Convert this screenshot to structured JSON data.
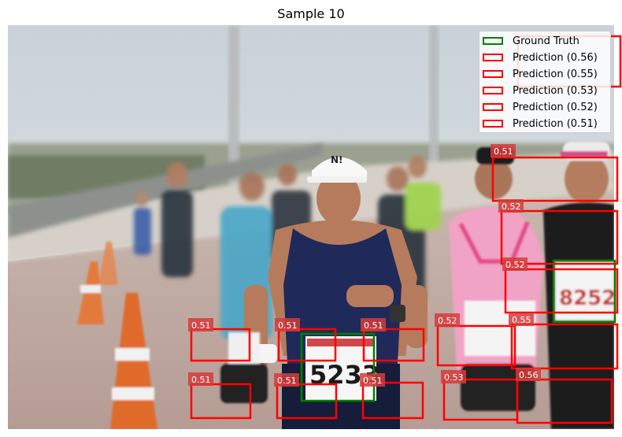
{
  "figure": {
    "title": "Sample 10"
  },
  "photo": {
    "subject": "marathon runners on a bridge",
    "bib_numbers_visible": [
      "5233",
      "8252"
    ]
  },
  "legend": {
    "items": [
      {
        "label": "Ground Truth",
        "color": "#008000"
      },
      {
        "label": "Prediction (0.56)",
        "color": "#ff0000"
      },
      {
        "label": "Prediction (0.55)",
        "color": "#ff0000"
      },
      {
        "label": "Prediction (0.53)",
        "color": "#ff0000"
      },
      {
        "label": "Prediction (0.52)",
        "color": "#ff0000"
      },
      {
        "label": "Prediction (0.51)",
        "color": "#ff0000"
      }
    ]
  },
  "colors": {
    "ground_truth": "#008000",
    "prediction": "#ff0000",
    "score_tag_bg": "#d43c3c"
  },
  "predictions": [
    {
      "score": "0.51"
    },
    {
      "score": "0.52"
    },
    {
      "score": "0.52"
    },
    {
      "score": "0.51"
    },
    {
      "score": "0.51"
    },
    {
      "score": "0.51"
    },
    {
      "score": "0.52"
    },
    {
      "score": "0.55"
    },
    {
      "score": "0.51"
    },
    {
      "score": "0.51"
    },
    {
      "score": "0.51"
    },
    {
      "score": "0.53"
    },
    {
      "score": "0.56"
    }
  ],
  "ground_truths": [
    {
      "label": "5233 bib"
    },
    {
      "label": "8252 bib"
    }
  ]
}
